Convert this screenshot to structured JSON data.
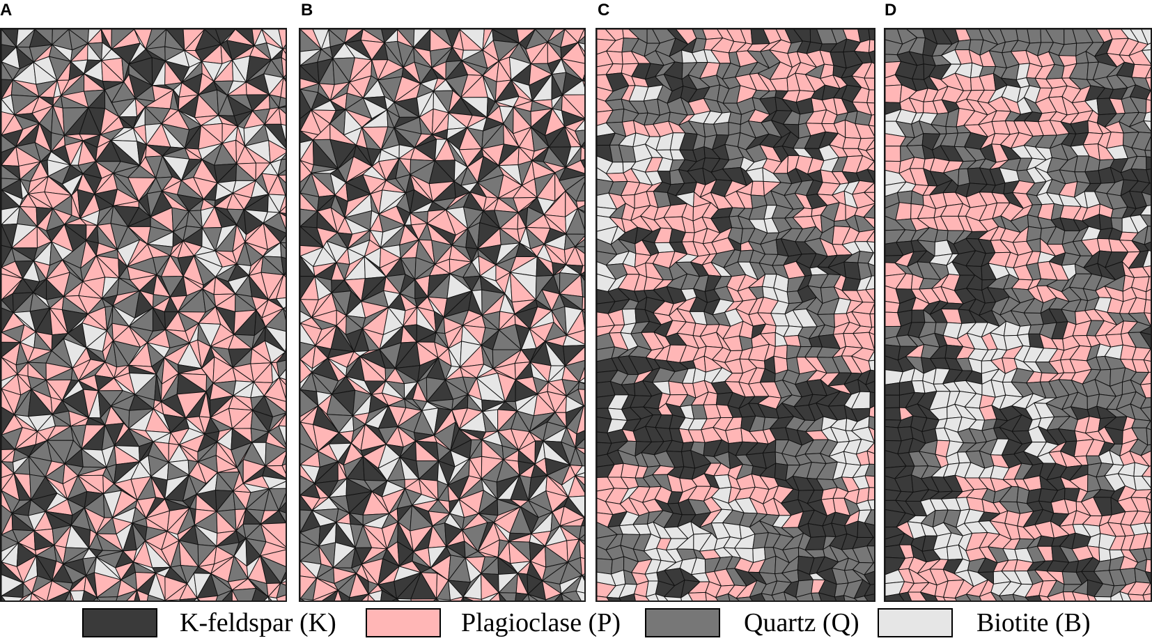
{
  "panels": [
    {
      "label": "A",
      "style": "triangular"
    },
    {
      "label": "B",
      "style": "triangular"
    },
    {
      "label": "C",
      "style": "voronoi"
    },
    {
      "label": "D",
      "style": "voronoi"
    }
  ],
  "minerals": [
    {
      "name": "K-feldspar (K)",
      "color": "#3a3a3a",
      "fraction": 0.22
    },
    {
      "name": "Plagioclase (P)",
      "color": "#ffb6b6",
      "fraction": 0.34
    },
    {
      "name": "Quartz (Q)",
      "color": "#777777",
      "fraction": 0.3
    },
    {
      "name": "Biotite (B)",
      "color": "#e6e6e6",
      "fraction": 0.14
    }
  ]
}
